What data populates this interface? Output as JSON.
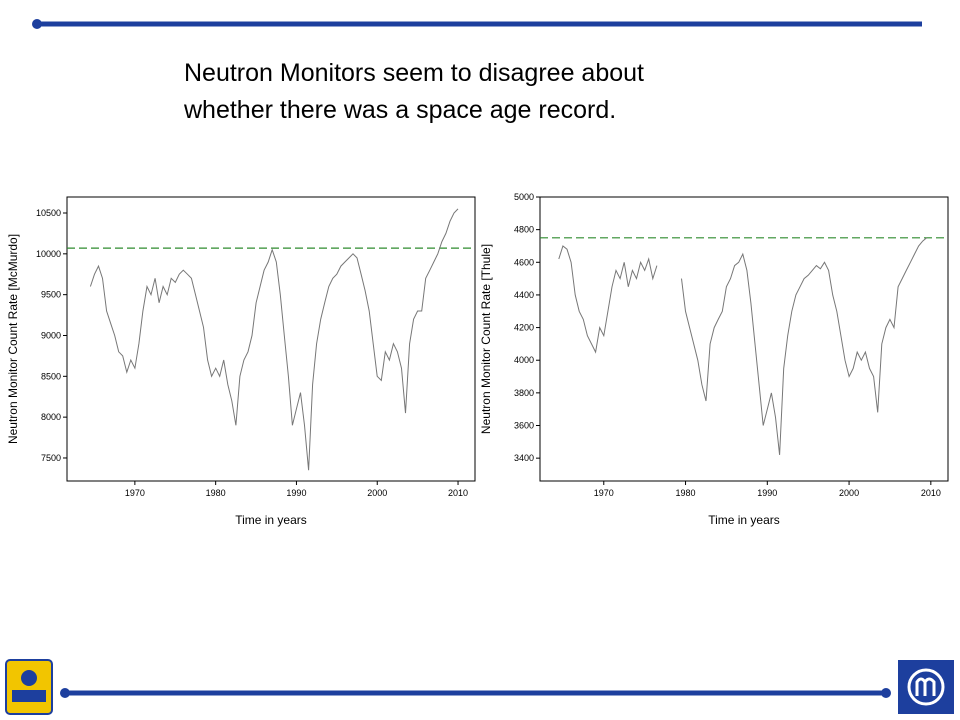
{
  "slide": {
    "title_lines": [
      "Neutron Monitors seem to disagree about",
      "whether there was a space age record."
    ]
  },
  "chart_data": [
    {
      "type": "line",
      "ylabel": "Neutron Monitor Count Rate [McMurdo]",
      "xlabel": "Time in years",
      "color": "#777777",
      "x": [
        1964.5,
        1965,
        1965.5,
        1966,
        1966.5,
        1967,
        1967.5,
        1968,
        1968.5,
        1969,
        1969.5,
        1970,
        1970.5,
        1971,
        1971.5,
        1972,
        1972.5,
        1973,
        1973.5,
        1974,
        1974.5,
        1975,
        1975.5,
        1976,
        1976.5,
        1977,
        1977.5,
        1978,
        1978.5,
        1979,
        1979.5,
        1980,
        1980.5,
        1981,
        1981.5,
        1982,
        1982.5,
        1983,
        1983.5,
        1984,
        1984.5,
        1985,
        1985.5,
        1986,
        1986.5,
        1987,
        1987.5,
        1988,
        1988.5,
        1989,
        1989.5,
        1990,
        1990.5,
        1991,
        1991.5,
        1992,
        1992.5,
        1993,
        1993.5,
        1994,
        1994.5,
        1995,
        1995.5,
        1996,
        1996.5,
        1997,
        1997.5,
        1998,
        1998.5,
        1999,
        1999.5,
        2000,
        2000.5,
        2001,
        2001.5,
        2002,
        2002.5,
        2003,
        2003.5,
        2004,
        2004.5,
        2005,
        2005.5,
        2006,
        2006.5,
        2007,
        2007.5,
        2008,
        2008.5,
        2009,
        2009.5,
        2010
      ],
      "values": [
        9600,
        9750,
        9850,
        9700,
        9300,
        9150,
        9000,
        8800,
        8750,
        8550,
        8700,
        8600,
        8900,
        9300,
        9600,
        9500,
        9700,
        9400,
        9600,
        9500,
        9700,
        9650,
        9750,
        9800,
        9750,
        9700,
        9500,
        9300,
        9100,
        8700,
        8500,
        8600,
        8500,
        8700,
        8400,
        8200,
        7900,
        8500,
        8700,
        8800,
        9000,
        9400,
        9600,
        9800,
        9900,
        10050,
        9900,
        9500,
        9000,
        8500,
        7900,
        8100,
        8300,
        7900,
        7350,
        8400,
        8900,
        9200,
        9400,
        9600,
        9700,
        9750,
        9850,
        9900,
        9950,
        10000,
        9950,
        9750,
        9550,
        9300,
        8900,
        8500,
        8450,
        8800,
        8700,
        8900,
        8800,
        8600,
        8050,
        8900,
        9200,
        9300,
        9300,
        9700,
        9800,
        9900,
        10000,
        10150,
        10250,
        10400,
        10500,
        10550
      ],
      "reference_line": {
        "value": 10070,
        "color": "#2e8b2e"
      },
      "xlim": [
        1961.6,
        2012.1
      ],
      "xticks": [
        1970,
        1980,
        1990,
        2000,
        2010
      ],
      "ylim": [
        7218,
        10696
      ],
      "yticks": [
        7500,
        8000,
        8500,
        9000,
        9500,
        10000,
        10500
      ]
    },
    {
      "type": "line",
      "ylabel": "Neutron Monitor Count Rate [Thule]",
      "xlabel": "Time in years",
      "color": "#777777",
      "x": [
        1964.5,
        1965,
        1965.5,
        1966,
        1966.5,
        1967,
        1967.5,
        1968,
        1968.5,
        1969,
        1969.5,
        1970,
        1970.5,
        1971,
        1971.5,
        1972,
        1972.5,
        1973,
        1973.5,
        1974,
        1974.5,
        1975,
        1975.5,
        1976,
        1976.5,
        1977,
        1977.5,
        1978,
        1978.5,
        1979,
        1979.5,
        1980,
        1980.5,
        1981,
        1981.5,
        1982,
        1982.5,
        1983,
        1983.5,
        1984,
        1984.5,
        1985,
        1985.5,
        1986,
        1986.5,
        1987,
        1987.5,
        1988,
        1988.5,
        1989,
        1989.5,
        1990,
        1990.5,
        1991,
        1991.5,
        1992,
        1992.5,
        1993,
        1993.5,
        1994,
        1994.5,
        1995,
        1995.5,
        1996,
        1996.5,
        1997,
        1997.5,
        1998,
        1998.5,
        1999,
        1999.5,
        2000,
        2000.5,
        2001,
        2001.5,
        2002,
        2002.5,
        2003,
        2003.5,
        2004,
        2004.5,
        2005,
        2005.5,
        2006,
        2006.5,
        2007,
        2007.5,
        2008,
        2008.5,
        2009,
        2009.5
      ],
      "values": [
        4620,
        4700,
        4680,
        4600,
        4400,
        4300,
        4250,
        4150,
        4100,
        4050,
        4200,
        4150,
        4300,
        4450,
        4550,
        4500,
        4600,
        4450,
        4550,
        4500,
        4600,
        4550,
        4620,
        4500,
        4580,
        null,
        null,
        null,
        null,
        null,
        4500,
        4300,
        4200,
        4100,
        4000,
        3850,
        3750,
        4100,
        4200,
        4250,
        4300,
        4450,
        4500,
        4580,
        4600,
        4650,
        4550,
        4350,
        4100,
        3850,
        3600,
        3700,
        3800,
        3650,
        3420,
        3950,
        4150,
        4300,
        4400,
        4450,
        4500,
        4520,
        4550,
        4580,
        4560,
        4600,
        4550,
        4400,
        4300,
        4150,
        4000,
        3900,
        3950,
        4050,
        4000,
        4050,
        3950,
        3900,
        3680,
        4100,
        4200,
        4250,
        4200,
        4450,
        4500,
        4550,
        4600,
        4650,
        4700,
        4730,
        4750
      ],
      "reference_line": {
        "value": 4750,
        "color": "#2e8b2e"
      },
      "xlim": [
        1962.2,
        2012.1
      ],
      "xticks": [
        1970,
        1980,
        1990,
        2000,
        2010
      ],
      "ylim": [
        3260,
        5000
      ],
      "yticks": [
        3400,
        3600,
        3800,
        4000,
        4200,
        4400,
        4600,
        4800,
        5000
      ]
    }
  ]
}
